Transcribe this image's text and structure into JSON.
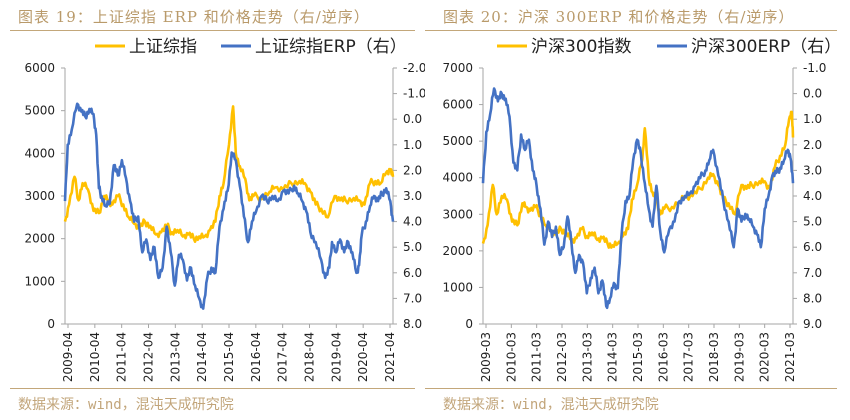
{
  "charts": [
    {
      "figure_title": "图表 19：上证综指 ERP 和价格走势（右/逆序）",
      "source": "数据来源：wind，混沌天成研究院"
    },
    {
      "figure_title": "图表 20：沪深 300ERP 和价格走势（右/逆序）",
      "source": "数据来源：wind，混沌天成研究院"
    }
  ],
  "colors": {
    "price": "#ffc000",
    "erp": "#4472c4",
    "axis": "#a6a6a6",
    "title": "#b99a6a"
  },
  "chart_data": [
    {
      "type": "line",
      "title": "上证综指ERP和价格走势（右/逆序）",
      "legend": [
        "上证综指",
        "上证综指ERP（右）"
      ],
      "legend_position": "top",
      "x_tick_labels": [
        "2009-04",
        "2010-04",
        "2011-04",
        "2012-04",
        "2013-04",
        "2014-04",
        "2015-04",
        "2016-04",
        "2017-04",
        "2018-04",
        "2019-04",
        "2020-04",
        "2021-04"
      ],
      "y_left": {
        "range": [
          0,
          6000
        ],
        "ticks": [
          "0",
          "1000",
          "2000",
          "3000",
          "4000",
          "5000",
          "6000"
        ]
      },
      "y_right": {
        "range": [
          -2.0,
          8.0
        ],
        "inverted": true,
        "ticks": [
          "-2.0",
          "-1.0",
          "0.0",
          "1.0",
          "2.0",
          "3.0",
          "4.0",
          "5.0",
          "6.0",
          "7.0",
          "8.0"
        ]
      },
      "x_range": [
        2009.25,
        2021.35
      ],
      "series": [
        {
          "name": "上证综指",
          "axis": "left",
          "x": [
            2009.25,
            2009.4,
            2009.6,
            2009.75,
            2009.9,
            2010.1,
            2010.3,
            2010.5,
            2010.7,
            2010.85,
            2011.0,
            2011.2,
            2011.4,
            2011.6,
            2011.8,
            2012.0,
            2012.2,
            2012.4,
            2012.6,
            2012.8,
            2013.0,
            2013.2,
            2013.4,
            2013.6,
            2013.8,
            2014.0,
            2014.2,
            2014.4,
            2014.6,
            2014.8,
            2014.95,
            2015.1,
            2015.3,
            2015.45,
            2015.55,
            2015.7,
            2015.9,
            2016.05,
            2016.2,
            2016.5,
            2016.8,
            2017.0,
            2017.3,
            2017.6,
            2017.9,
            2018.1,
            2018.3,
            2018.5,
            2018.7,
            2018.95,
            2019.2,
            2019.4,
            2019.6,
            2019.9,
            2020.1,
            2020.3,
            2020.5,
            2020.7,
            2020.9,
            2021.1,
            2021.25,
            2021.35
          ],
          "values": [
            2400,
            2800,
            3450,
            2900,
            3300,
            3150,
            2650,
            2600,
            3000,
            2900,
            2800,
            3000,
            2800,
            2500,
            2350,
            2250,
            2400,
            2300,
            2100,
            2150,
            2300,
            2150,
            2200,
            2050,
            2100,
            2000,
            2050,
            2050,
            2200,
            2400,
            3000,
            3300,
            4200,
            5100,
            4000,
            3700,
            3400,
            2900,
            3000,
            2950,
            3100,
            3200,
            3150,
            3300,
            3350,
            3300,
            3100,
            2800,
            2700,
            2500,
            3000,
            2900,
            2900,
            2950,
            2900,
            2800,
            3300,
            3350,
            3300,
            3550,
            3600,
            3450
          ]
        },
        {
          "name": "上证综指ERP（右）",
          "axis": "right",
          "x": [
            2009.25,
            2009.35,
            2009.5,
            2009.7,
            2009.85,
            2010.0,
            2010.15,
            2010.3,
            2010.4,
            2010.5,
            2010.6,
            2010.75,
            2010.9,
            2011.05,
            2011.2,
            2011.35,
            2011.5,
            2011.65,
            2011.8,
            2011.95,
            2012.1,
            2012.25,
            2012.4,
            2012.55,
            2012.7,
            2012.85,
            2013.0,
            2013.15,
            2013.3,
            2013.45,
            2013.6,
            2013.75,
            2013.9,
            2014.05,
            2014.2,
            2014.35,
            2014.5,
            2014.65,
            2014.8,
            2014.95,
            2015.1,
            2015.25,
            2015.4,
            2015.55,
            2015.7,
            2015.85,
            2016.0,
            2016.15,
            2016.3,
            2016.5,
            2016.7,
            2016.9,
            2017.1,
            2017.3,
            2017.5,
            2017.7,
            2017.85,
            2018.0,
            2018.15,
            2018.3,
            2018.5,
            2018.7,
            2018.85,
            2019.0,
            2019.1,
            2019.25,
            2019.4,
            2019.55,
            2019.7,
            2019.85,
            2020.0,
            2020.1,
            2020.2,
            2020.35,
            2020.5,
            2020.65,
            2020.8,
            2020.95,
            2021.1,
            2021.25,
            2021.35
          ],
          "values": [
            3.2,
            1.0,
            0.4,
            -0.6,
            -0.3,
            -0.1,
            -0.4,
            -0.2,
            0.6,
            2.7,
            3.0,
            3.4,
            3.3,
            1.8,
            2.2,
            1.6,
            2.3,
            3.2,
            4.0,
            3.8,
            5.2,
            4.7,
            5.5,
            5.0,
            6.2,
            5.8,
            4.2,
            5.2,
            6.5,
            5.3,
            5.5,
            6.3,
            5.8,
            6.5,
            7.0,
            7.4,
            6.2,
            5.8,
            6.0,
            4.2,
            3.5,
            2.8,
            1.3,
            1.6,
            2.6,
            3.8,
            4.8,
            4.0,
            3.6,
            3.0,
            3.2,
            3.0,
            3.2,
            2.8,
            2.9,
            2.6,
            2.9,
            3.2,
            3.6,
            4.4,
            4.8,
            5.5,
            6.2,
            5.8,
            4.8,
            5.2,
            4.7,
            5.2,
            4.8,
            5.2,
            6.0,
            5.7,
            4.5,
            4.0,
            3.4,
            3.0,
            3.2,
            2.9,
            2.7,
            3.2,
            4.0
          ]
        }
      ]
    },
    {
      "type": "line",
      "title": "沪深300ERP和价格走势（右/逆序）",
      "legend": [
        "沪深300指数",
        "沪深300ERP（右）"
      ],
      "legend_position": "top",
      "x_tick_labels": [
        "2009-03",
        "2010-03",
        "2011-03",
        "2012-03",
        "2013-03",
        "2014-03",
        "2015-03",
        "2016-03",
        "2017-03",
        "2018-03",
        "2019-03",
        "2020-03",
        "2021-03"
      ],
      "y_left": {
        "range": [
          0,
          7000
        ],
        "ticks": [
          "0",
          "1000",
          "2000",
          "3000",
          "4000",
          "5000",
          "6000",
          "7000"
        ]
      },
      "y_right": {
        "range": [
          -1.0,
          9.0
        ],
        "inverted": true,
        "ticks": [
          "-1.0",
          "0.0",
          "1.0",
          "2.0",
          "3.0",
          "4.0",
          "5.0",
          "6.0",
          "7.0",
          "8.0",
          "9.0"
        ]
      },
      "x_range": [
        2009.17,
        2021.2
      ],
      "series": [
        {
          "name": "沪深300指数",
          "axis": "left",
          "x": [
            2009.17,
            2009.35,
            2009.55,
            2009.7,
            2009.9,
            2010.1,
            2010.3,
            2010.5,
            2010.7,
            2010.85,
            2011.0,
            2011.2,
            2011.4,
            2011.6,
            2011.8,
            2012.0,
            2012.2,
            2012.4,
            2012.6,
            2012.8,
            2013.0,
            2013.2,
            2013.4,
            2013.6,
            2013.8,
            2014.0,
            2014.2,
            2014.4,
            2014.6,
            2014.8,
            2014.95,
            2015.15,
            2015.35,
            2015.45,
            2015.6,
            2015.75,
            2015.9,
            2016.05,
            2016.2,
            2016.5,
            2016.8,
            2017.0,
            2017.3,
            2017.6,
            2017.9,
            2018.1,
            2018.3,
            2018.5,
            2018.7,
            2018.95,
            2019.2,
            2019.4,
            2019.6,
            2019.9,
            2020.1,
            2020.3,
            2020.5,
            2020.7,
            2020.9,
            2021.05,
            2021.15,
            2021.2
          ],
          "values": [
            2200,
            2700,
            3800,
            3000,
            3500,
            3400,
            2800,
            2700,
            3300,
            3200,
            3100,
            3200,
            3000,
            2700,
            2550,
            2450,
            2600,
            2500,
            2300,
            2350,
            2600,
            2400,
            2500,
            2300,
            2350,
            2200,
            2150,
            2200,
            2400,
            2600,
            3400,
            3800,
            4500,
            5350,
            4000,
            3600,
            3400,
            3000,
            3150,
            3200,
            3350,
            3450,
            3500,
            3700,
            4000,
            4100,
            3800,
            3400,
            3300,
            3000,
            3800,
            3700,
            3800,
            3900,
            3900,
            3700,
            4300,
            4600,
            4900,
            5600,
            5800,
            5100
          ]
        },
        {
          "name": "沪深300ERP（右）",
          "axis": "right",
          "x": [
            2009.17,
            2009.3,
            2009.45,
            2009.6,
            2009.75,
            2009.9,
            2010.05,
            2010.2,
            2010.35,
            2010.5,
            2010.65,
            2010.8,
            2010.95,
            2011.1,
            2011.25,
            2011.4,
            2011.55,
            2011.7,
            2011.85,
            2012.0,
            2012.15,
            2012.3,
            2012.45,
            2012.6,
            2012.75,
            2012.9,
            2013.05,
            2013.2,
            2013.35,
            2013.5,
            2013.65,
            2013.8,
            2013.95,
            2014.1,
            2014.25,
            2014.4,
            2014.55,
            2014.7,
            2014.85,
            2015.0,
            2015.15,
            2015.3,
            2015.45,
            2015.6,
            2015.75,
            2015.9,
            2016.05,
            2016.2,
            2016.4,
            2016.6,
            2016.8,
            2017.0,
            2017.2,
            2017.4,
            2017.6,
            2017.8,
            2017.95,
            2018.1,
            2018.3,
            2018.5,
            2018.7,
            2018.9,
            2019.05,
            2019.2,
            2019.35,
            2019.5,
            2019.65,
            2019.8,
            2019.95,
            2020.1,
            2020.25,
            2020.4,
            2020.55,
            2020.7,
            2020.85,
            2021.0,
            2021.1,
            2021.2
          ],
          "values": [
            3.5,
            1.5,
            0.8,
            -0.2,
            0.3,
            0.0,
            0.2,
            0.9,
            2.7,
            3.0,
            1.6,
            2.2,
            1.8,
            3.0,
            3.6,
            4.5,
            5.9,
            5.0,
            5.6,
            5.2,
            6.3,
            6.0,
            4.8,
            5.8,
            7.0,
            6.3,
            6.6,
            7.8,
            7.2,
            6.8,
            7.8,
            7.3,
            8.3,
            8.0,
            7.4,
            7.6,
            5.5,
            4.2,
            4.0,
            2.6,
            1.8,
            2.4,
            3.5,
            4.5,
            5.2,
            3.6,
            5.4,
            6.2,
            5.3,
            5.0,
            4.2,
            4.0,
            3.9,
            3.6,
            3.3,
            3.0,
            2.6,
            2.2,
            3.2,
            4.2,
            5.0,
            6.0,
            4.5,
            5.0,
            4.7,
            4.9,
            5.2,
            5.5,
            6.0,
            4.5,
            4.0,
            3.2,
            3.1,
            2.9,
            2.6,
            2.2,
            2.5,
            3.5
          ]
        }
      ]
    }
  ]
}
